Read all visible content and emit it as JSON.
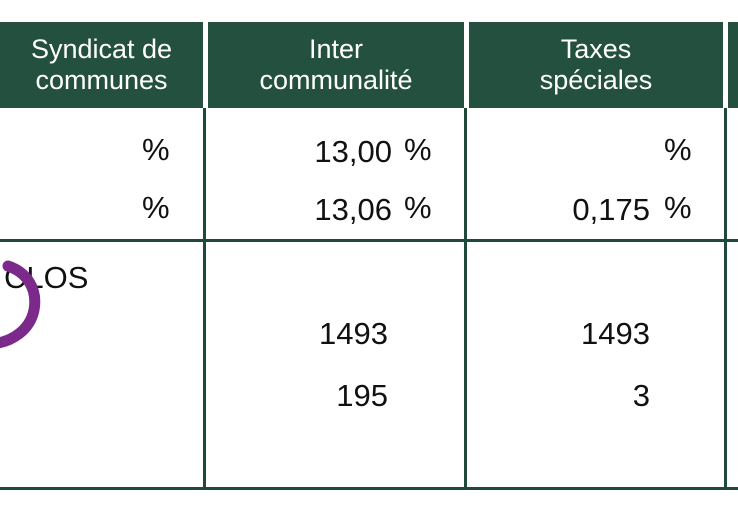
{
  "colors": {
    "header_background": "#24503f",
    "grid_line": "#1f4a3a",
    "annotation_stroke": "#7b2a8c"
  },
  "table": {
    "headers": [
      {
        "line1": "Syndicat de",
        "line2": "communes"
      },
      {
        "line1": "Inter",
        "line2": "communalité"
      },
      {
        "line1": "Taxes",
        "line2": "spéciales"
      }
    ],
    "rates": {
      "row1": {
        "syndicat_unit": "%",
        "inter_value": "13,00",
        "inter_unit": "%",
        "taxes_value": "",
        "taxes_unit": "%"
      },
      "row2": {
        "syndicat_unit": "%",
        "inter_value": "13,06",
        "inter_unit": "%",
        "taxes_value": "0,175",
        "taxes_unit": "%"
      }
    },
    "counts": {
      "syndicat_label": "CLOS",
      "inter_row1": "1493",
      "taxes_row1": "1493",
      "inter_row2": "195",
      "taxes_row2": "3"
    }
  }
}
